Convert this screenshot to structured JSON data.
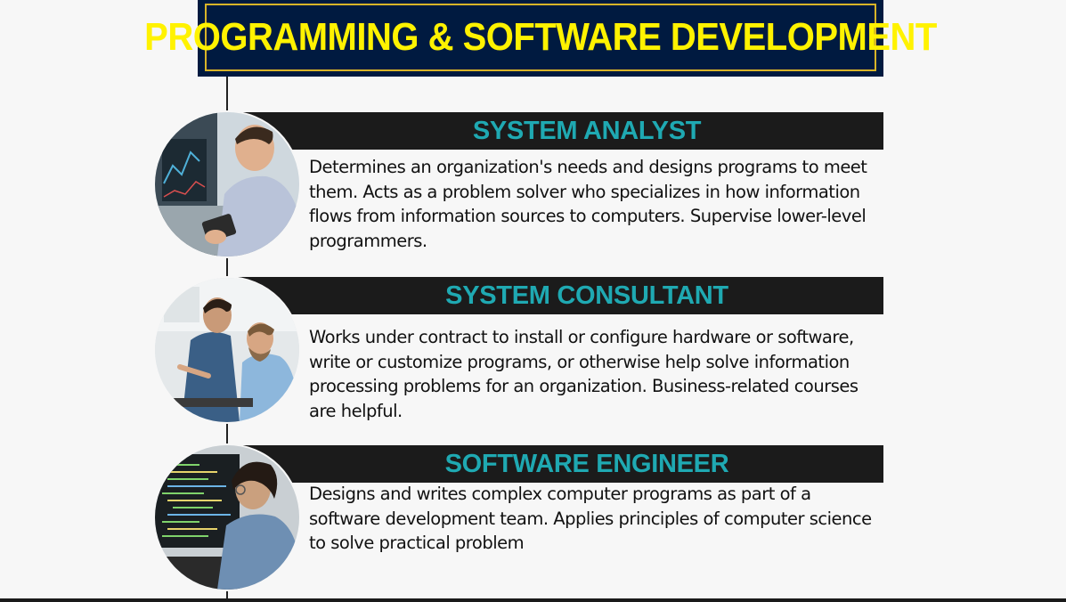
{
  "title": "PROGRAMMING & SOFTWARE DEVELOPMENT",
  "colors": {
    "banner_bg": "#001a40",
    "banner_border": "#d8b428",
    "title_text": "#fff200",
    "header_bg": "#1b1b1b",
    "header_text": "#1fa9b2",
    "page_bg": "#f7f7f7"
  },
  "cards": [
    {
      "heading": "SYSTEM ANALYST",
      "description": "Determines an organization's needs and designs programs to meet them. Acts as a problem solver who specializes in how information flows from information sources to computers. Supervise lower-level programmers.",
      "image": "man-using-tablet-photo"
    },
    {
      "heading": "SYSTEM CONSULTANT",
      "description": "Works under contract to install or configure hardware or software, write or customize programs, or otherwise help solve information processing problems for an organization. Business-related courses are helpful.",
      "image": "two-men-at-computer-photo"
    },
    {
      "heading": "SOFTWARE ENGINEER",
      "description": "Designs and writes complex computer programs as part of a software development team. Applies principles of computer science to solve practical problem",
      "image": "programmer-at-monitor-photo"
    }
  ]
}
